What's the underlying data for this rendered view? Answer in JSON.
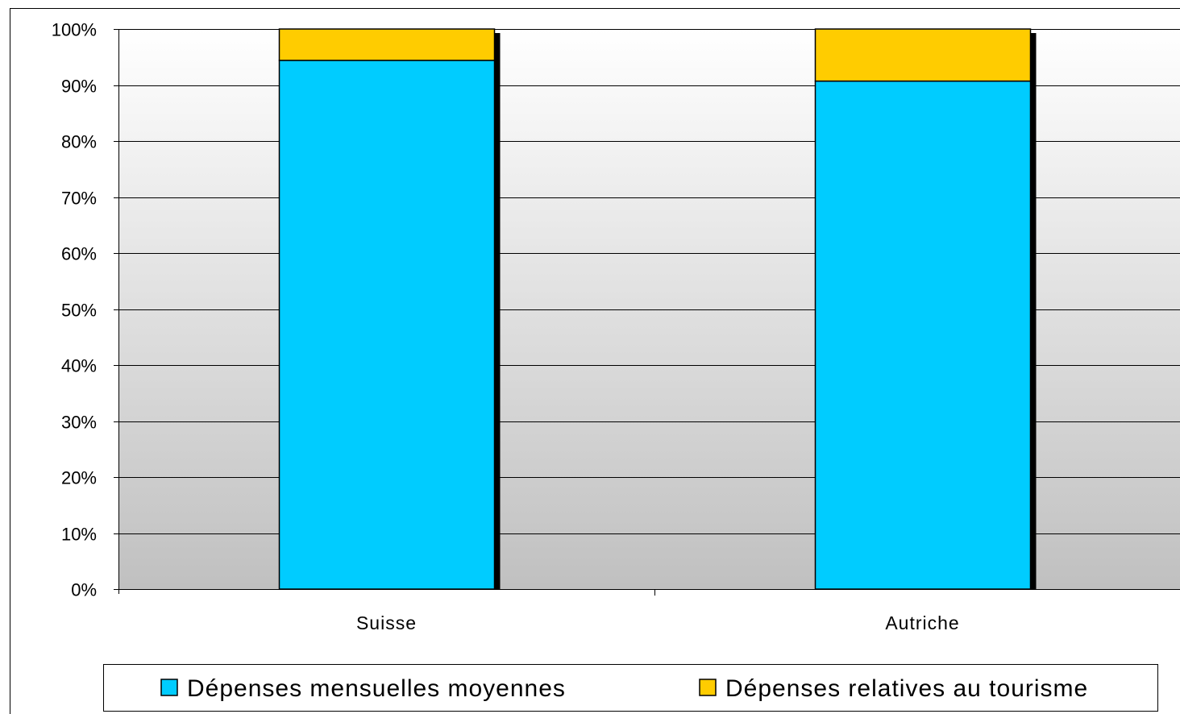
{
  "chart_data": {
    "type": "bar",
    "stacked": true,
    "normalized_percent": true,
    "categories": [
      "Suisse",
      "Autriche"
    ],
    "series": [
      {
        "name": "Dépenses mensuelles moyennes",
        "values": [
          94.4,
          90.7
        ],
        "color": "#00CCFF"
      },
      {
        "name": "Dépenses relatives au tourisme",
        "values": [
          5.6,
          9.3
        ],
        "color": "#FFCC00"
      }
    ],
    "ylim": [
      0,
      100
    ],
    "yticks": [
      "0%",
      "10%",
      "20%",
      "30%",
      "40%",
      "50%",
      "60%",
      "70%",
      "80%",
      "90%",
      "100%"
    ],
    "grid": true,
    "legend_position": "bottom",
    "plot_background": "gradient white to gray (#FFFFFF to #C0C0C0)",
    "bar_shadow_color": "#000000"
  }
}
